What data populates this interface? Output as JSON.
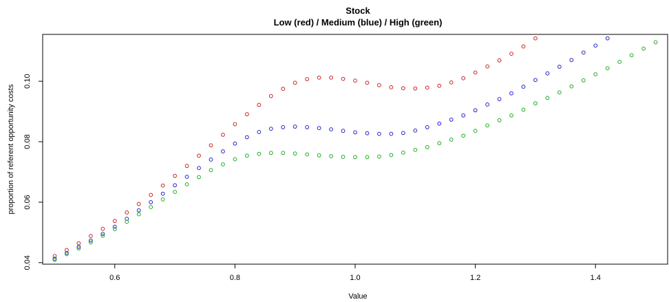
{
  "chart_data": {
    "type": "scatter",
    "title": "Stock",
    "subtitle": "Low (red) / Medium (blue) / High (green)",
    "xlabel": "Value",
    "ylabel": "proportion of referent opportunity costs",
    "xlim": [
      0.48,
      1.52
    ],
    "ylim": [
      0.0395,
      0.1155
    ],
    "xticks": [
      0.6,
      0.8,
      1.0,
      1.2,
      1.4
    ],
    "xtick_labels": [
      "0.6",
      "0.8",
      "1.0",
      "1.2",
      "1.4"
    ],
    "yticks": [
      0.04,
      0.06,
      0.08,
      0.1
    ],
    "ytick_labels": [
      "0.04",
      "0.06",
      "0.08",
      "0.10"
    ],
    "grid": false,
    "marker": "open-circle",
    "series": [
      {
        "color": "#cc2222",
        "x": [
          0.5,
          0.52,
          0.54,
          0.56,
          0.58,
          0.6,
          0.62,
          0.64,
          0.66,
          0.68,
          0.7,
          0.72,
          0.74,
          0.76,
          0.78,
          0.8,
          0.82,
          0.84,
          0.86,
          0.88,
          0.9,
          0.92,
          0.94,
          0.96,
          0.98,
          1.0,
          1.02,
          1.04,
          1.06,
          1.08,
          1.1,
          1.12,
          1.14,
          1.16,
          1.18,
          1.2,
          1.22,
          1.24,
          1.26,
          1.28,
          1.3
        ],
        "y": [
          0.0422,
          0.0442,
          0.0464,
          0.0488,
          0.0512,
          0.0538,
          0.0566,
          0.0594,
          0.0624,
          0.0655,
          0.0687,
          0.072,
          0.0754,
          0.0788,
          0.0823,
          0.0858,
          0.0891,
          0.0922,
          0.0951,
          0.0975,
          0.0995,
          0.1007,
          0.1012,
          0.1012,
          0.1008,
          0.1002,
          0.0995,
          0.0987,
          0.098,
          0.0977,
          0.0976,
          0.0979,
          0.0985,
          0.0996,
          0.101,
          0.1029,
          0.1049,
          0.1069,
          0.1091,
          0.1115,
          0.1142
        ]
      },
      {
        "color": "#2222cc",
        "x": [
          0.5,
          0.52,
          0.54,
          0.56,
          0.58,
          0.6,
          0.62,
          0.64,
          0.66,
          0.68,
          0.7,
          0.72,
          0.74,
          0.76,
          0.78,
          0.8,
          0.82,
          0.84,
          0.86,
          0.88,
          0.9,
          0.92,
          0.94,
          0.96,
          0.98,
          1.0,
          1.02,
          1.04,
          1.06,
          1.08,
          1.1,
          1.12,
          1.14,
          1.16,
          1.18,
          1.2,
          1.22,
          1.24,
          1.26,
          1.28,
          1.3,
          1.32,
          1.34,
          1.36,
          1.38,
          1.4,
          1.42
        ],
        "y": [
          0.0413,
          0.0432,
          0.0452,
          0.0473,
          0.0495,
          0.0519,
          0.0545,
          0.0573,
          0.06,
          0.0628,
          0.0656,
          0.0684,
          0.0713,
          0.0741,
          0.0768,
          0.0794,
          0.0815,
          0.0832,
          0.0843,
          0.0848,
          0.085,
          0.0848,
          0.0845,
          0.0841,
          0.0836,
          0.0831,
          0.0828,
          0.0826,
          0.0826,
          0.0829,
          0.0837,
          0.0848,
          0.086,
          0.0873,
          0.0887,
          0.0904,
          0.0923,
          0.0941,
          0.096,
          0.0982,
          0.1004,
          0.1026,
          0.1048,
          0.107,
          0.1095,
          0.1118,
          0.1142
        ]
      },
      {
        "color": "#22aa22",
        "x": [
          0.5,
          0.52,
          0.54,
          0.56,
          0.58,
          0.6,
          0.62,
          0.64,
          0.66,
          0.68,
          0.7,
          0.72,
          0.74,
          0.76,
          0.78,
          0.8,
          0.82,
          0.84,
          0.86,
          0.88,
          0.9,
          0.92,
          0.94,
          0.96,
          0.98,
          1.0,
          1.02,
          1.04,
          1.06,
          1.08,
          1.1,
          1.12,
          1.14,
          1.16,
          1.18,
          1.2,
          1.22,
          1.24,
          1.26,
          1.28,
          1.3,
          1.32,
          1.34,
          1.36,
          1.38,
          1.4,
          1.42,
          1.44,
          1.46,
          1.48,
          1.5
        ],
        "y": [
          0.0409,
          0.0428,
          0.0447,
          0.0467,
          0.0489,
          0.0511,
          0.0535,
          0.056,
          0.0584,
          0.0609,
          0.0634,
          0.0659,
          0.0683,
          0.0706,
          0.0725,
          0.0742,
          0.0754,
          0.076,
          0.0763,
          0.0763,
          0.0761,
          0.0758,
          0.0755,
          0.0752,
          0.075,
          0.0749,
          0.0749,
          0.0751,
          0.0756,
          0.0764,
          0.0773,
          0.0782,
          0.0795,
          0.0807,
          0.082,
          0.0836,
          0.0854,
          0.0871,
          0.0887,
          0.0906,
          0.0927,
          0.0945,
          0.0963,
          0.0983,
          0.1003,
          0.1023,
          0.1043,
          0.1064,
          0.1086,
          0.1108,
          0.1129
        ]
      }
    ]
  }
}
